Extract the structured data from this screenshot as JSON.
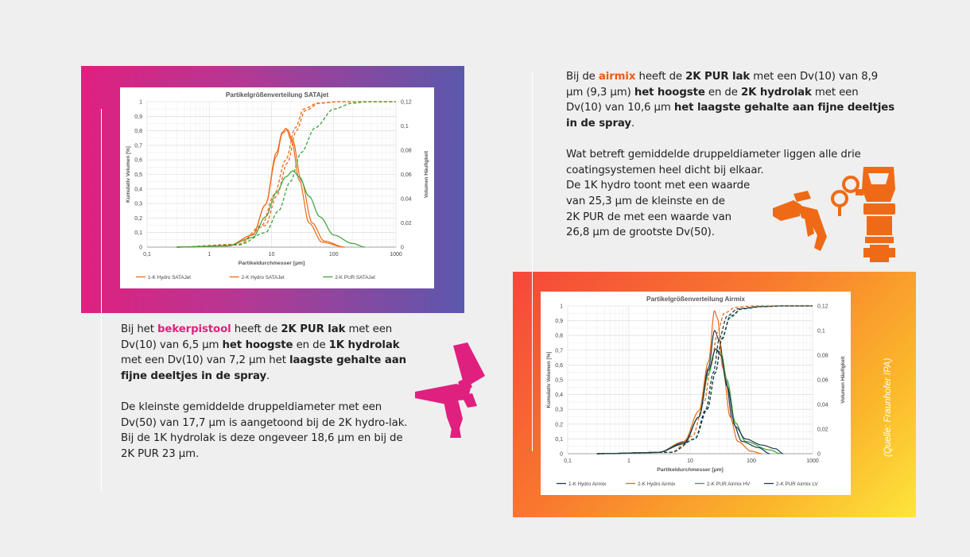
{
  "colors": {
    "pink": "#e0207f",
    "orange": "#ef6a16",
    "purple": "#5b58ad",
    "green": "#3aa23a",
    "dark": "#1d3a4d"
  },
  "left_text": {
    "p1_a": "Bij het ",
    "p1_kw": "bekerpistool",
    "p1_b": " heeft de ",
    "p1_c": "2K PUR lak",
    "p1_d": " met een Dv(10) van 6,5 µm ",
    "p1_e": "het hoogste",
    "p1_f": " en de ",
    "p1_g": "1K hydrolak",
    "p1_h": " met een Dv(10) van 7,2 µm het ",
    "p1_i": "laagste gehalte aan fijne deeltjes in de spray",
    "p1_j": ".",
    "p2": "De kleinste gemiddelde druppeldiameter met een Dv(50) van 17,7 µm is aangetoond bij de 2K hydro-lak. Bij de 1K hydrolak is deze ongeveer 18,6 µm en bij de 2K PUR 23 µm."
  },
  "right_text": {
    "p1_a": "Bij de ",
    "p1_kw": "airmix",
    "p1_b": " heeft de ",
    "p1_c": "2K PUR lak",
    "p1_d": " met een Dv(10) van 8,9 µm (9,3 µm) ",
    "p1_e": "het hoogste",
    "p1_f": " en de  ",
    "p1_g": "2K hydrolak",
    "p1_h": " met een Dv(10) van 10,6 µm ",
    "p1_i": "het laagste gehalte aan fijne deeltjes in de spray",
    "p1_j": ".",
    "p2_l1": "Wat betreft gemiddelde druppeldiameter liggen alle drie",
    "p2_l2": "coatingsystemen heel dicht bij elkaar.",
    "p2_l3": "De 1K hydro toont met een waarde",
    "p2_l4": "van 25,3 µm de kleinste en de",
    "p2_l5": "2K PUR de met een waarde van",
    "p2_l6": "26,8 µm de grootste Dv(50)."
  },
  "source": "(Quelle: Fraunhofer IPA)",
  "icons": {
    "left": "spray-gun-icon",
    "right_gun": "airmix-gun-icon",
    "right_pump": "pump-icon"
  },
  "chart_data": [
    {
      "type": "line",
      "title": "Partikelgrößenverteilung SATAjet",
      "xlabel": "Partikeldurchmesser  [µm]",
      "ylabel": "Kumulativ Volumen [%]",
      "y2label": "Volumen Häufigkeit",
      "x_scale": "log",
      "xlim": [
        0.1,
        1000
      ],
      "ylim": [
        0,
        1
      ],
      "y2lim": [
        0,
        0.12
      ],
      "xticks": [
        "0,1",
        "1",
        "10",
        "100",
        "1000"
      ],
      "yticks": [
        "0",
        "0,1",
        "0,2",
        "0,3",
        "0,4",
        "0,5",
        "0,6",
        "0,7",
        "0,8",
        "0,9",
        "1"
      ],
      "y2ticks": [
        "0",
        "0,02",
        "0,04",
        "0,06",
        "0,08",
        "0,1",
        "0,12"
      ],
      "legend_position": "bottom",
      "series": [
        {
          "name": "1-K Hydro SATAJet",
          "color": "#ef6a16",
          "freq": [
            [
              0.3,
              0
            ],
            [
              2,
              0.001
            ],
            [
              5,
              0.01
            ],
            [
              8,
              0.035
            ],
            [
              12,
              0.075
            ],
            [
              15,
              0.094
            ],
            [
              18,
              0.097
            ],
            [
              22,
              0.088
            ],
            [
              30,
              0.055
            ],
            [
              45,
              0.02
            ],
            [
              70,
              0.005
            ],
            [
              150,
              0
            ]
          ],
          "cum": [
            [
              0.3,
              0
            ],
            [
              3,
              0.02
            ],
            [
              8,
              0.15
            ],
            [
              12,
              0.35
            ],
            [
              18,
              0.58
            ],
            [
              25,
              0.8
            ],
            [
              35,
              0.94
            ],
            [
              60,
              0.99
            ],
            [
              120,
              1
            ],
            [
              1000,
              1
            ]
          ]
        },
        {
          "name": "2-K Hydro SATAJet",
          "color": "#ef6a16",
          "freq": [
            [
              0.3,
              0
            ],
            [
              2,
              0.001
            ],
            [
              5,
              0.01
            ],
            [
              8,
              0.035
            ],
            [
              12,
              0.078
            ],
            [
              15,
              0.095
            ],
            [
              17,
              0.098
            ],
            [
              21,
              0.088
            ],
            [
              28,
              0.055
            ],
            [
              40,
              0.02
            ],
            [
              65,
              0.004
            ],
            [
              150,
              0
            ]
          ],
          "cum": [
            [
              0.3,
              0
            ],
            [
              3,
              0.02
            ],
            [
              7,
              0.15
            ],
            [
              11,
              0.36
            ],
            [
              17,
              0.6
            ],
            [
              24,
              0.82
            ],
            [
              33,
              0.95
            ],
            [
              55,
              0.99
            ],
            [
              110,
              1
            ],
            [
              1000,
              1
            ]
          ]
        },
        {
          "name": "2-K PUR SATAJet",
          "color": "#3aa23a",
          "freq": [
            [
              0.3,
              0
            ],
            [
              2,
              0.001
            ],
            [
              5,
              0.008
            ],
            [
              8,
              0.025
            ],
            [
              12,
              0.045
            ],
            [
              17,
              0.058
            ],
            [
              22,
              0.063
            ],
            [
              28,
              0.058
            ],
            [
              40,
              0.042
            ],
            [
              60,
              0.025
            ],
            [
              100,
              0.01
            ],
            [
              200,
              0.003
            ],
            [
              320,
              0
            ]
          ],
          "cum": [
            [
              0.3,
              0
            ],
            [
              3,
              0.015
            ],
            [
              8,
              0.1
            ],
            [
              13,
              0.25
            ],
            [
              20,
              0.45
            ],
            [
              30,
              0.65
            ],
            [
              50,
              0.82
            ],
            [
              100,
              0.95
            ],
            [
              200,
              0.99
            ],
            [
              350,
              1
            ],
            [
              1000,
              1
            ]
          ]
        }
      ]
    },
    {
      "type": "line",
      "title": "Partikelgrößenverteilung Airmix",
      "xlabel": "Partikeldurchmesser  [µm]",
      "ylabel": "Kumulativ Volumen [%]",
      "y2label": "Volumen Häufigkeit",
      "x_scale": "log",
      "xlim": [
        0.1,
        1000
      ],
      "ylim": [
        0,
        1
      ],
      "y2lim": [
        0,
        0.12
      ],
      "xticks": [
        "0,1",
        "1",
        "10",
        "100",
        "1000"
      ],
      "yticks": [
        "0",
        "0,1",
        "0,2",
        "0,3",
        "0,4",
        "0,5",
        "0,6",
        "0,7",
        "0,8",
        "0,9",
        "1"
      ],
      "y2ticks": [
        "0",
        "0,02",
        "0,04",
        "0,06",
        "0,08",
        "0,1",
        "0,12"
      ],
      "legend_position": "bottom",
      "series": [
        {
          "name": "1-K Hydro Airmix",
          "color": "#1d3a4d",
          "freq": [
            [
              0.3,
              0
            ],
            [
              3,
              0.001
            ],
            [
              8,
              0.008
            ],
            [
              14,
              0.03
            ],
            [
              20,
              0.07
            ],
            [
              25,
              0.1
            ],
            [
              30,
              0.092
            ],
            [
              38,
              0.06
            ],
            [
              50,
              0.025
            ],
            [
              70,
              0.01
            ],
            [
              130,
              0.005
            ],
            [
              200,
              0
            ]
          ],
          "cum": [
            [
              0.3,
              0
            ],
            [
              5,
              0.01
            ],
            [
              12,
              0.1
            ],
            [
              18,
              0.3
            ],
            [
              24,
              0.55
            ],
            [
              30,
              0.78
            ],
            [
              40,
              0.93
            ],
            [
              60,
              0.98
            ],
            [
              130,
              0.995
            ],
            [
              300,
              1
            ],
            [
              1000,
              1
            ]
          ]
        },
        {
          "name": "2-K Hydro Airmix",
          "color": "#ef6a16",
          "freq": [
            [
              0.3,
              0
            ],
            [
              3,
              0.001
            ],
            [
              8,
              0.01
            ],
            [
              14,
              0.035
            ],
            [
              20,
              0.075
            ],
            [
              25,
              0.116
            ],
            [
              28,
              0.11
            ],
            [
              34,
              0.07
            ],
            [
              45,
              0.03
            ],
            [
              60,
              0.01
            ],
            [
              100,
              0.002
            ],
            [
              150,
              0
            ]
          ],
          "cum": [
            [
              0.3,
              0
            ],
            [
              5,
              0.01
            ],
            [
              11,
              0.12
            ],
            [
              17,
              0.35
            ],
            [
              22,
              0.6
            ],
            [
              28,
              0.82
            ],
            [
              36,
              0.95
            ],
            [
              55,
              0.99
            ],
            [
              110,
              1
            ],
            [
              1000,
              1
            ]
          ]
        },
        {
          "name": "2-K PUR Airmix HV",
          "color": "#3aa23a",
          "freq": [
            [
              0.3,
              0
            ],
            [
              3,
              0.001
            ],
            [
              8,
              0.009
            ],
            [
              14,
              0.03
            ],
            [
              20,
              0.065
            ],
            [
              26,
              0.085
            ],
            [
              32,
              0.082
            ],
            [
              40,
              0.06
            ],
            [
              55,
              0.025
            ],
            [
              80,
              0.01
            ],
            [
              200,
              0.003
            ],
            [
              300,
              0
            ]
          ],
          "cum": [
            [
              0.3,
              0
            ],
            [
              5,
              0.01
            ],
            [
              12,
              0.1
            ],
            [
              19,
              0.3
            ],
            [
              26,
              0.55
            ],
            [
              33,
              0.77
            ],
            [
              45,
              0.92
            ],
            [
              70,
              0.98
            ],
            [
              150,
              0.995
            ],
            [
              300,
              1
            ],
            [
              1000,
              1
            ]
          ]
        },
        {
          "name": "2-K PUR Airmix LV",
          "color": "#1d3a4d",
          "freq": [
            [
              0.3,
              0
            ],
            [
              3,
              0.001
            ],
            [
              8,
              0.009
            ],
            [
              14,
              0.03
            ],
            [
              20,
              0.068
            ],
            [
              26,
              0.085
            ],
            [
              32,
              0.08
            ],
            [
              40,
              0.055
            ],
            [
              55,
              0.022
            ],
            [
              80,
              0.012
            ],
            [
              150,
              0.007
            ],
            [
              250,
              0.004
            ],
            [
              330,
              0
            ]
          ],
          "cum": [
            [
              0.3,
              0
            ],
            [
              5,
              0.01
            ],
            [
              12,
              0.1
            ],
            [
              19,
              0.3
            ],
            [
              26,
              0.55
            ],
            [
              33,
              0.78
            ],
            [
              45,
              0.93
            ],
            [
              70,
              0.98
            ],
            [
              150,
              0.995
            ],
            [
              330,
              1
            ],
            [
              1000,
              1
            ]
          ]
        }
      ]
    }
  ]
}
